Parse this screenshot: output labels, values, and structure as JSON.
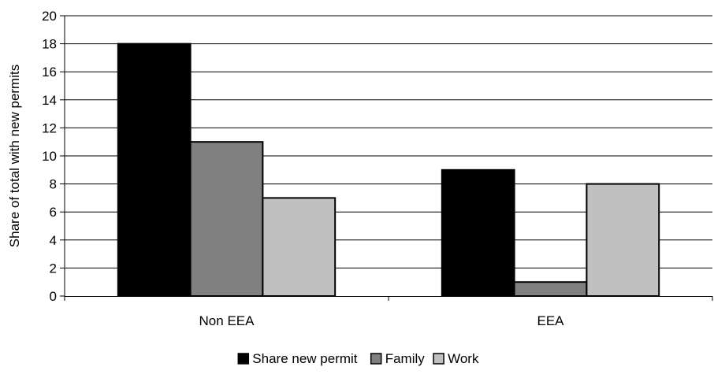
{
  "chart_data": {
    "type": "bar",
    "categories": [
      "Non EEA",
      "EEA"
    ],
    "series": [
      {
        "name": "Share new permit",
        "values": [
          18,
          9
        ],
        "color": "#000000"
      },
      {
        "name": "Family",
        "values": [
          11,
          1
        ],
        "color": "#808080"
      },
      {
        "name": "Work",
        "values": [
          7,
          8
        ],
        "color": "#c0c0c0"
      }
    ],
    "title": "",
    "xlabel": "",
    "ylabel": "Share of total with new permits",
    "ylim": [
      0,
      20
    ],
    "yticks": [
      0,
      2,
      4,
      6,
      8,
      10,
      12,
      14,
      16,
      18,
      20
    ],
    "grid": true,
    "legend_position": "bottom"
  }
}
